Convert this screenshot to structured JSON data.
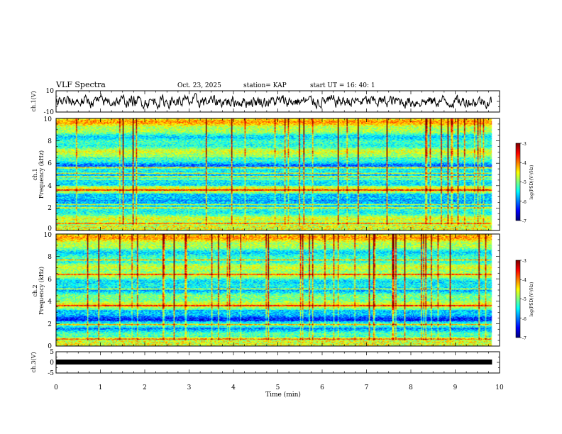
{
  "header": {
    "title": "VLF Spectra",
    "date": "Oct. 23, 2025",
    "station": "station= KAP",
    "start": "start  UT  =    16: 40: 1"
  },
  "chart_data": {
    "type": "heatmap",
    "xlabel": "Time (min)",
    "xlim": [
      0,
      10
    ],
    "xticks": [
      "0",
      "1",
      "2",
      "3",
      "4",
      "5",
      "6",
      "7",
      "8",
      "9",
      "10"
    ],
    "data_end_min": 9.83,
    "ch1_wave": {
      "ylabel": "ch.1(V)",
      "ylim": [
        -10,
        10
      ],
      "yticks": [
        "10",
        "-10"
      ],
      "mean": 0,
      "amplitude": 5.5
    },
    "ch1_spec": {
      "ylabel_line1": "ch.1",
      "ylabel_line2": "Frequency (kHz)",
      "ylim": [
        0,
        10
      ],
      "yticks": [
        "0",
        "2",
        "4",
        "6",
        "8",
        "10"
      ],
      "colorbar": {
        "label": "log(PSD)(V²/Hz)",
        "ticks": [
          "-3",
          "-4",
          "-5",
          "-6",
          "-7"
        ],
        "range": [
          -7,
          -3
        ]
      },
      "tones_khz": [
        0.3,
        0.6,
        2.0,
        2.3,
        3.6,
        4.8,
        5.1,
        5.6
      ],
      "quiet_bands_khz": [
        [
          5.7,
          6.5
        ],
        [
          2.6,
          3.3
        ],
        [
          4.0,
          4.5
        ]
      ]
    },
    "ch2_spec": {
      "ylabel_line1": "ch.2",
      "ylabel_line2": "Frequency (kHz)",
      "ylim": [
        0,
        10
      ],
      "yticks": [
        "0",
        "2",
        "4",
        "6",
        "8",
        "10"
      ],
      "colorbar": {
        "label": "log(PSD)(V²/Hz)",
        "ticks": [
          "-3",
          "-4",
          "-5",
          "-6",
          "-7"
        ],
        "range": [
          -7,
          -3
        ]
      },
      "tones_khz": [
        0.6,
        1.9,
        3.6,
        5.1,
        6.4,
        7.7
      ],
      "quiet_bands_khz": [
        [
          2.2,
          3.2
        ],
        [
          0.8,
          1.6
        ]
      ]
    },
    "ch3_wave": {
      "ylabel": "ch.3(V)",
      "ylim": [
        -5,
        5
      ],
      "yticks": [
        "5",
        "0",
        "-5"
      ],
      "level": 0
    }
  }
}
